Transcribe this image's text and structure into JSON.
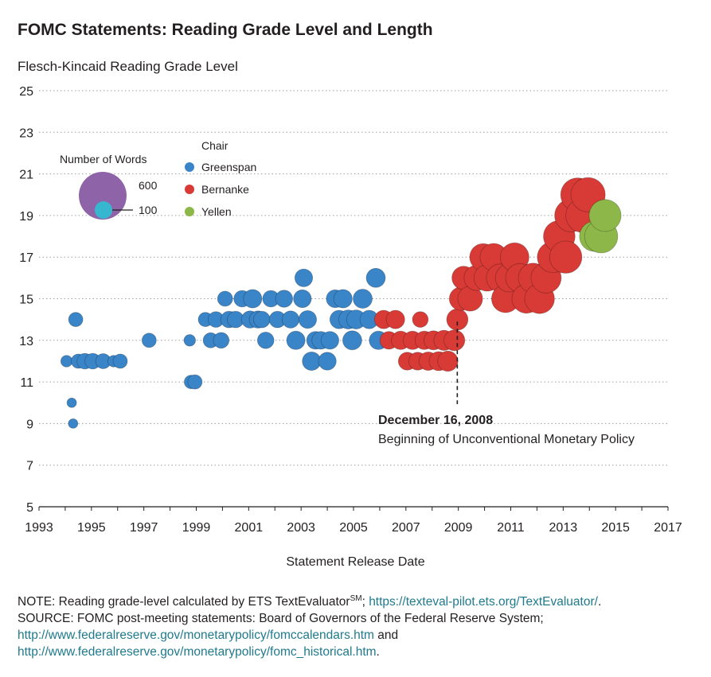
{
  "chart_data": {
    "type": "scatter",
    "subtype": "bubble",
    "title": "FOMC Statements: Reading Grade Level and Length",
    "ylabel": "Flesch-Kincaid Reading Grade Level",
    "xlabel": "Statement Release Date",
    "xlim": [
      1993,
      2017
    ],
    "ylim": [
      5,
      25
    ],
    "xticks": [
      "1993",
      "1995",
      "1997",
      "1999",
      "2001",
      "2003",
      "2005",
      "2007",
      "2009",
      "2011",
      "2013",
      "2015",
      "2017"
    ],
    "yticks": [
      "25",
      "23",
      "21",
      "19",
      "17",
      "15",
      "13",
      "11",
      "9",
      "7",
      "5"
    ],
    "grid": "horizontal dotted",
    "size_legend": {
      "title": "Number of Words",
      "large": "600",
      "small": "100",
      "large_color": "#8e63a8",
      "small_color": "#37b6d0"
    },
    "color_legend": {
      "title": "Chair",
      "items": [
        {
          "name": "Greenspan",
          "color": "#3a85c8"
        },
        {
          "name": "Bernanke",
          "color": "#d83b36"
        },
        {
          "name": "Yellen",
          "color": "#8db849"
        }
      ]
    },
    "annotation": {
      "x": 2008.96,
      "date": "December 16, 2008",
      "text": "Beginning of Unconventional Monetary Policy"
    },
    "series": [
      {
        "name": "Greenspan",
        "points": [
          [
            1994.05,
            12,
            60
          ],
          [
            1994.25,
            10,
            40
          ],
          [
            1994.3,
            9,
            40
          ],
          [
            1994.4,
            14,
            90
          ],
          [
            1994.5,
            12,
            90
          ],
          [
            1994.75,
            12,
            110
          ],
          [
            1995.05,
            12,
            110
          ],
          [
            1995.45,
            12,
            100
          ],
          [
            1995.85,
            12,
            60
          ],
          [
            1996.1,
            12,
            90
          ],
          [
            1997.2,
            13,
            90
          ],
          [
            1998.75,
            13,
            60
          ],
          [
            1998.8,
            11,
            80
          ],
          [
            1998.95,
            11,
            90
          ],
          [
            1999.35,
            14,
            90
          ],
          [
            1999.55,
            13,
            100
          ],
          [
            1999.75,
            14,
            110
          ],
          [
            1999.95,
            13,
            110
          ],
          [
            2000.1,
            15,
            100
          ],
          [
            2000.25,
            14,
            120
          ],
          [
            2000.5,
            14,
            120
          ],
          [
            2000.75,
            15,
            120
          ],
          [
            2001.05,
            14,
            130
          ],
          [
            2001.15,
            15,
            150
          ],
          [
            2001.35,
            14,
            130
          ],
          [
            2001.5,
            14,
            120
          ],
          [
            2001.65,
            13,
            120
          ],
          [
            2001.85,
            15,
            120
          ],
          [
            2002.1,
            14,
            120
          ],
          [
            2002.35,
            15,
            130
          ],
          [
            2002.6,
            14,
            130
          ],
          [
            2002.8,
            13,
            150
          ],
          [
            2003.05,
            15,
            140
          ],
          [
            2003.1,
            16,
            140
          ],
          [
            2003.25,
            14,
            140
          ],
          [
            2003.4,
            12,
            150
          ],
          [
            2003.55,
            13,
            140
          ],
          [
            2003.75,
            13,
            140
          ],
          [
            2004.0,
            12,
            140
          ],
          [
            2004.1,
            13,
            140
          ],
          [
            2004.3,
            15,
            140
          ],
          [
            2004.45,
            14,
            150
          ],
          [
            2004.6,
            15,
            150
          ],
          [
            2004.8,
            14,
            160
          ],
          [
            2004.95,
            13,
            160
          ],
          [
            2005.1,
            14,
            160
          ],
          [
            2005.35,
            15,
            160
          ],
          [
            2005.6,
            14,
            150
          ],
          [
            2005.85,
            16,
            160
          ],
          [
            2005.95,
            13,
            150
          ]
        ]
      },
      {
        "name": "Bernanke",
        "points": [
          [
            2006.15,
            14,
            150
          ],
          [
            2006.35,
            13,
            140
          ],
          [
            2006.6,
            14,
            150
          ],
          [
            2006.8,
            13,
            150
          ],
          [
            2007.05,
            12,
            140
          ],
          [
            2007.25,
            13,
            150
          ],
          [
            2007.45,
            12,
            140
          ],
          [
            2007.55,
            14,
            110
          ],
          [
            2007.7,
            13,
            150
          ],
          [
            2007.85,
            12,
            150
          ],
          [
            2008.05,
            13,
            160
          ],
          [
            2008.25,
            12,
            160
          ],
          [
            2008.45,
            13,
            180
          ],
          [
            2008.6,
            12,
            180
          ],
          [
            2008.85,
            13,
            190
          ],
          [
            2008.96,
            14,
            200
          ],
          [
            2009.1,
            15,
            240
          ],
          [
            2009.2,
            16,
            240
          ],
          [
            2009.45,
            15,
            270
          ],
          [
            2009.7,
            16,
            280
          ],
          [
            2009.95,
            17,
            320
          ],
          [
            2010.1,
            16,
            310
          ],
          [
            2010.35,
            17,
            330
          ],
          [
            2010.6,
            16,
            340
          ],
          [
            2010.8,
            15,
            340
          ],
          [
            2010.95,
            16,
            350
          ],
          [
            2011.15,
            17,
            360
          ],
          [
            2011.35,
            16,
            360
          ],
          [
            2011.6,
            15,
            370
          ],
          [
            2011.85,
            16,
            380
          ],
          [
            2012.1,
            15,
            390
          ],
          [
            2012.35,
            16,
            400
          ],
          [
            2012.6,
            17,
            420
          ],
          [
            2012.85,
            18,
            440
          ],
          [
            2013.1,
            17,
            460
          ],
          [
            2013.3,
            19,
            470
          ],
          [
            2013.55,
            20,
            500
          ],
          [
            2013.75,
            19,
            510
          ],
          [
            2013.95,
            20,
            520
          ]
        ]
      },
      {
        "name": "Yellen",
        "points": [
          [
            2014.2,
            18,
            400
          ],
          [
            2014.45,
            18,
            480
          ],
          [
            2014.6,
            19,
            450
          ]
        ]
      }
    ]
  },
  "notes": {
    "line1_text": "NOTE: Reading grade-level calculated by ETS TextEvaluator",
    "line1_sup": "SM",
    "line1_sep": "; ",
    "line1_link": "https://texteval-pilot.ets.org/TextEvaluator/",
    "line1_end": ".",
    "line2_text": "SOURCE: FOMC post-meeting statements: Board of Governors of the Federal Reserve System;",
    "line3_link": "http://www.federalreserve.gov/monetarypolicy/fomccalendars.htm",
    "line3_end": " and",
    "line4_link": "http://www.federalreserve.gov/monetarypolicy/fomc_historical.htm",
    "line4_end": "."
  }
}
